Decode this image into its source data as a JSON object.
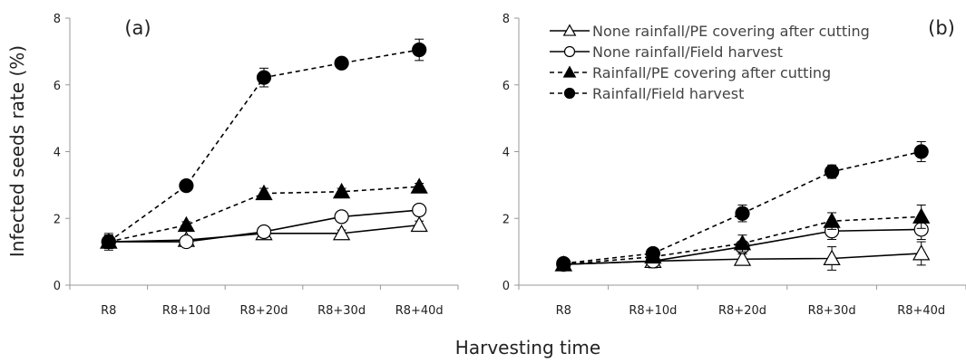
{
  "chart_data": {
    "type": "line",
    "ylabel": "Infected seeds rate (%)",
    "xlabel": "Harvesting time",
    "categories": [
      "R8",
      "R8+10d",
      "R8+20d",
      "R8+30d",
      "R8+40d"
    ],
    "ylim": [
      0,
      8
    ],
    "yticks": [
      0,
      2,
      4,
      6,
      8
    ],
    "grid": false,
    "legend_placement": "top-right of panel (b)",
    "series_styles": [
      {
        "line": "solid",
        "marker": "triangle",
        "fill": "open"
      },
      {
        "line": "solid",
        "marker": "circle",
        "fill": "open"
      },
      {
        "line": "dashed",
        "marker": "triangle",
        "fill": "filled"
      },
      {
        "line": "dashed",
        "marker": "circle",
        "fill": "filled"
      }
    ],
    "legend": [
      "None rainfall/PE covering after cutting",
      "None rainfall/Field harvest",
      "Rainfall/PE covering after cutting",
      "Rainfall/Field harvest"
    ],
    "panels": [
      {
        "label": "(a)",
        "series": [
          {
            "values": [
              1.3,
              1.35,
              1.55,
              1.55,
              1.8
            ],
            "errors": [
              0.12,
              0.1,
              0.1,
              0.1,
              0.12
            ]
          },
          {
            "values": [
              1.3,
              1.3,
              1.6,
              2.05,
              2.25
            ],
            "errors": [
              0.25,
              0.1,
              0.1,
              0.1,
              0.1
            ]
          },
          {
            "values": [
              1.3,
              1.8,
              2.75,
              2.8,
              2.95
            ],
            "errors": [
              0.2,
              0.1,
              0.15,
              0.1,
              0.1
            ]
          },
          {
            "values": [
              1.3,
              2.98,
              6.22,
              6.65,
              7.05
            ],
            "errors": [
              0.2,
              0.1,
              0.28,
              0.1,
              0.32
            ]
          }
        ]
      },
      {
        "label": "(b)",
        "series": [
          {
            "values": [
              0.62,
              0.72,
              0.78,
              0.8,
              0.95
            ],
            "errors": [
              0.05,
              0.2,
              0.15,
              0.35,
              0.35
            ]
          },
          {
            "values": [
              0.62,
              0.72,
              1.15,
              1.62,
              1.67
            ],
            "errors": [
              0.05,
              0.1,
              0.15,
              0.25,
              0.3
            ]
          },
          {
            "values": [
              0.62,
              0.85,
              1.25,
              1.92,
              2.05
            ],
            "errors": [
              0.05,
              0.1,
              0.25,
              0.25,
              0.35
            ]
          },
          {
            "values": [
              0.65,
              0.95,
              2.15,
              3.4,
              4.0
            ],
            "errors": [
              0.05,
              0.1,
              0.25,
              0.2,
              0.3
            ]
          }
        ]
      }
    ]
  }
}
